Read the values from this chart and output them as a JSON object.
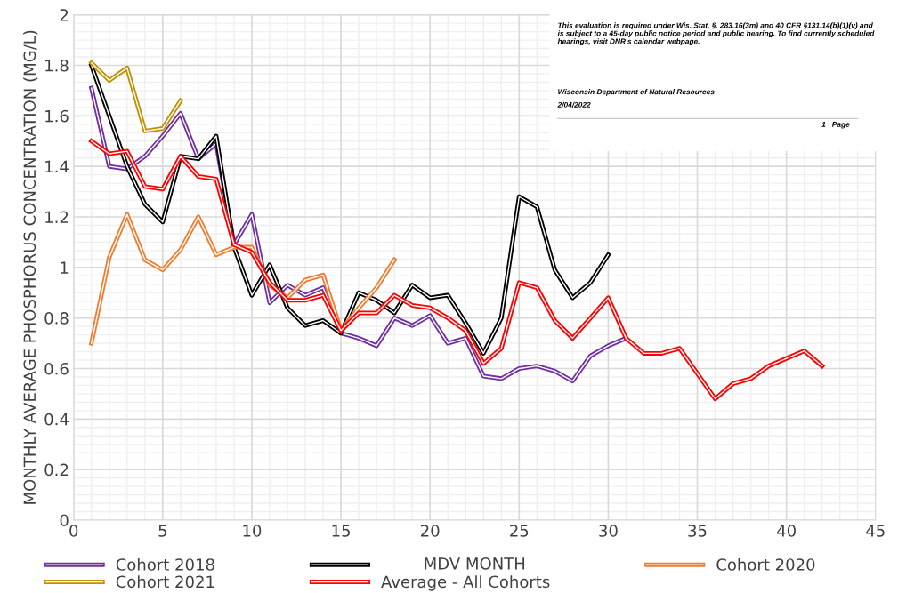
{
  "chart_data": {
    "type": "line",
    "xlabel": "MDV MONTH",
    "ylabel": "MONTHLY AVERAGE PHOSPHORUS CONCENTRATION (MG/L)",
    "xlim": [
      0,
      45
    ],
    "xticks": [
      0,
      5,
      10,
      15,
      20,
      25,
      30,
      35,
      40,
      45
    ],
    "ylim": [
      0,
      2
    ],
    "yticks": [
      0,
      0.2,
      0.4,
      0.6,
      0.8,
      1,
      1.2,
      1.4,
      1.6,
      1.8,
      2
    ],
    "grid": true,
    "legend": "bottom",
    "marker": "none",
    "line_style": "solid",
    "annotations": [
      "This evaluation is required under Wis. Stat. §. 283.16(3m) and 40 CFR §131.14(b)(1)(v) and is subject to a 45-day public notice period and public hearing. To find currently scheduled hearings, visit DNR's calendar webpage.",
      "Wisconsin Department of Natural Resources",
      "2/04/2022",
      "1 | Page"
    ],
    "series": [
      {
        "name": "Cohort 2018",
        "color": "#7030a0",
        "x": [
          1,
          2,
          3,
          4,
          5,
          6,
          7,
          8,
          9,
          10,
          11,
          12,
          13,
          14,
          15,
          16,
          17,
          18,
          19,
          20,
          21,
          22,
          23,
          24,
          25,
          26,
          27,
          28,
          29,
          30,
          31
        ],
        "values": [
          1.71,
          1.4,
          1.39,
          1.44,
          1.52,
          1.61,
          1.43,
          1.49,
          1.09,
          1.21,
          0.86,
          0.93,
          0.89,
          0.92,
          0.74,
          0.72,
          0.69,
          0.8,
          0.77,
          0.81,
          0.7,
          0.72,
          0.57,
          0.56,
          0.6,
          0.61,
          0.59,
          0.55,
          0.65,
          0.69,
          0.72
        ]
      },
      {
        "color": "#000000",
        "x": [
          1,
          2,
          3,
          4,
          5,
          6,
          7,
          8,
          9,
          10,
          11,
          12,
          13,
          14,
          15,
          16,
          17,
          18,
          19,
          20,
          21,
          22,
          23,
          24,
          25,
          26,
          27,
          28,
          29,
          30
        ],
        "values": [
          1.8,
          1.6,
          1.4,
          1.25,
          1.18,
          1.44,
          1.43,
          1.52,
          1.08,
          0.89,
          1.01,
          0.84,
          0.77,
          0.79,
          0.74,
          0.9,
          0.87,
          0.82,
          0.93,
          0.88,
          0.89,
          0.78,
          0.66,
          0.8,
          1.28,
          1.24,
          0.99,
          0.88,
          0.94,
          1.05
        ]
      },
      {
        "name": "Cohort 2020",
        "color": "#ed7d31",
        "x": [
          1,
          2,
          3,
          4,
          5,
          6,
          7,
          8,
          9,
          10,
          11,
          12,
          13,
          14,
          15,
          16,
          17,
          18
        ],
        "values": [
          0.7,
          1.04,
          1.21,
          1.03,
          0.99,
          1.07,
          1.2,
          1.05,
          1.08,
          1.08,
          0.93,
          0.88,
          0.95,
          0.97,
          0.75,
          0.84,
          0.92,
          1.03
        ]
      },
      {
        "name": "Cohort 2021",
        "color": "#bf9000",
        "x": [
          1,
          2,
          3,
          4,
          5,
          6
        ],
        "values": [
          1.81,
          1.74,
          1.79,
          1.54,
          1.55,
          1.66
        ]
      },
      {
        "name": "Average - All Cohorts",
        "color": "#ff0000",
        "x": [
          1,
          2,
          3,
          4,
          5,
          6,
          7,
          8,
          9,
          10,
          11,
          12,
          13,
          14,
          15,
          16,
          17,
          18,
          19,
          20,
          21,
          22,
          23,
          24,
          25,
          26,
          27,
          28,
          29,
          30,
          31,
          32,
          33,
          34,
          35,
          36,
          37,
          38,
          39,
          40,
          41,
          42
        ],
        "values": [
          1.5,
          1.45,
          1.46,
          1.32,
          1.31,
          1.44,
          1.36,
          1.35,
          1.09,
          1.06,
          0.94,
          0.87,
          0.87,
          0.89,
          0.75,
          0.82,
          0.82,
          0.89,
          0.85,
          0.84,
          0.8,
          0.75,
          0.62,
          0.68,
          0.94,
          0.92,
          0.79,
          0.72,
          0.8,
          0.88,
          0.72,
          0.66,
          0.66,
          0.68,
          0.58,
          0.48,
          0.54,
          0.56,
          0.61,
          0.64,
          0.67,
          0.61
        ]
      }
    ]
  }
}
